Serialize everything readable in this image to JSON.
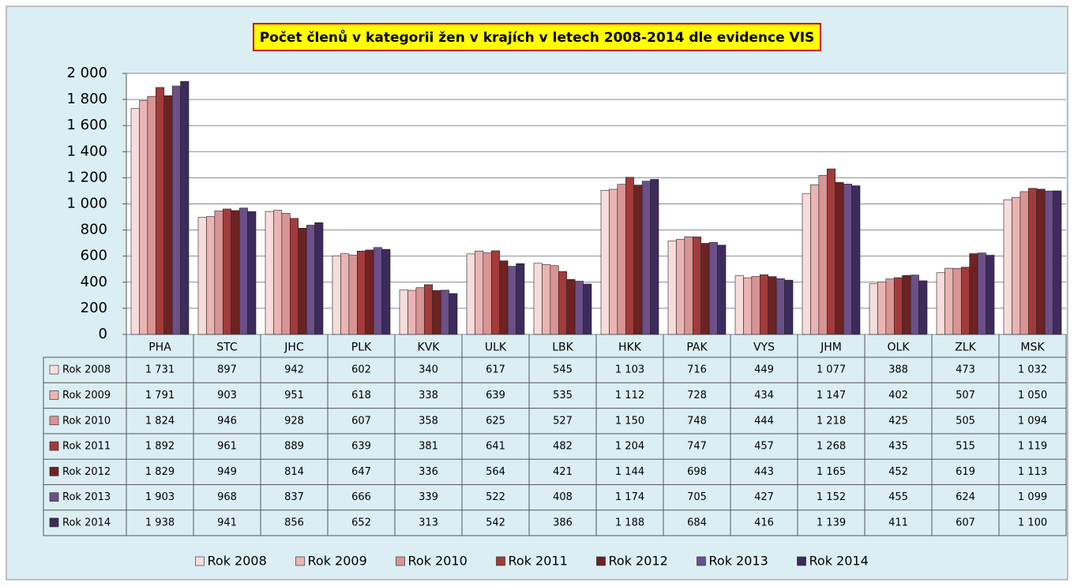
{
  "chart_data": {
    "type": "bar",
    "title": "Počet členů v kategorii žen v krajích v letech 2008-2014 dle evidence VIS",
    "categories": [
      "PHA",
      "STC",
      "JHC",
      "PLK",
      "KVK",
      "ULK",
      "LBK",
      "HKK",
      "PAK",
      "VYS",
      "JHM",
      "OLK",
      "ZLK",
      "MSK"
    ],
    "series": [
      {
        "name": "Rok 2008",
        "color": "#f8dcdc",
        "values": [
          1731,
          897,
          942,
          602,
          340,
          617,
          545,
          1103,
          716,
          449,
          1077,
          388,
          473,
          1032
        ],
        "value_labels": [
          "1 731",
          "897",
          "942",
          "602",
          "340",
          "617",
          "545",
          "1 103",
          "716",
          "449",
          "1 077",
          "388",
          "473",
          "1 032"
        ]
      },
      {
        "name": "Rok 2009",
        "color": "#ebb4b4",
        "values": [
          1791,
          903,
          951,
          618,
          338,
          639,
          535,
          1112,
          728,
          434,
          1147,
          402,
          507,
          1050
        ],
        "value_labels": [
          "1 791",
          "903",
          "951",
          "618",
          "338",
          "639",
          "535",
          "1 112",
          "728",
          "434",
          "1 147",
          "402",
          "507",
          "1 050"
        ]
      },
      {
        "name": "Rok 2010",
        "color": "#d99494",
        "values": [
          1824,
          946,
          928,
          607,
          358,
          625,
          527,
          1150,
          748,
          444,
          1218,
          425,
          505,
          1094
        ],
        "value_labels": [
          "1 824",
          "946",
          "928",
          "607",
          "358",
          "625",
          "527",
          "1 150",
          "748",
          "444",
          "1 218",
          "425",
          "505",
          "1 094"
        ]
      },
      {
        "name": "Rok 2011",
        "color": "#a33b3b",
        "values": [
          1892,
          961,
          889,
          639,
          381,
          641,
          482,
          1204,
          747,
          457,
          1268,
          435,
          515,
          1119
        ],
        "value_labels": [
          "1 892",
          "961",
          "889",
          "639",
          "381",
          "641",
          "482",
          "1 204",
          "747",
          "457",
          "1 268",
          "435",
          "515",
          "1 119"
        ]
      },
      {
        "name": "Rok 2012",
        "color": "#6e2222",
        "values": [
          1829,
          949,
          814,
          647,
          336,
          564,
          421,
          1144,
          698,
          443,
          1165,
          452,
          619,
          1113
        ],
        "value_labels": [
          "1 829",
          "949",
          "814",
          "647",
          "336",
          "564",
          "421",
          "1 144",
          "698",
          "443",
          "1 165",
          "452",
          "619",
          "1 113"
        ]
      },
      {
        "name": "Rok 2013",
        "color": "#6b5089",
        "values": [
          1903,
          968,
          837,
          666,
          339,
          522,
          408,
          1174,
          705,
          427,
          1152,
          455,
          624,
          1099
        ],
        "value_labels": [
          "1 903",
          "968",
          "837",
          "666",
          "339",
          "522",
          "408",
          "1 174",
          "705",
          "427",
          "1 152",
          "455",
          "624",
          "1 099"
        ]
      },
      {
        "name": "Rok 2014",
        "color": "#3c2b5c",
        "values": [
          1938,
          941,
          856,
          652,
          313,
          542,
          386,
          1188,
          684,
          416,
          1139,
          411,
          607,
          1100
        ],
        "value_labels": [
          "1 938",
          "941",
          "856",
          "652",
          "313",
          "542",
          "386",
          "1 188",
          "684",
          "416",
          "1 139",
          "411",
          "607",
          "1 100"
        ]
      }
    ],
    "ylim": [
      0,
      2000
    ],
    "yticks": [
      0,
      200,
      400,
      600,
      800,
      {
        "value": 1000,
        "label": "1 000"
      },
      {
        "value": 1200,
        "label": "1 200"
      },
      {
        "value": 1400,
        "label": "1 400"
      },
      {
        "value": 1600,
        "label": "1 600"
      },
      {
        "value": 1800,
        "label": "1 800"
      },
      {
        "value": 2000,
        "label": "2 000"
      }
    ],
    "grid": true
  }
}
